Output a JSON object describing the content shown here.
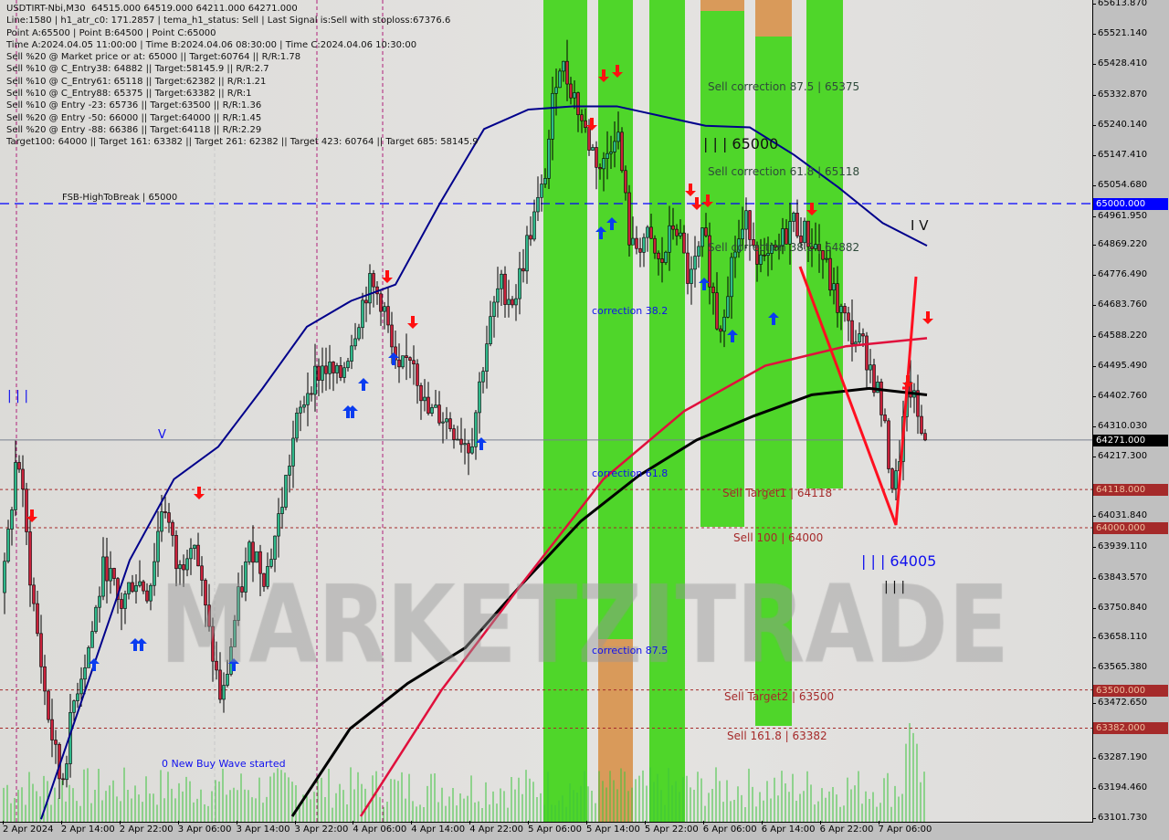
{
  "header": {
    "lines": [
      "USDTIRT-Nbi,M30  64515.000 64519.000 64211.000 64271.000",
      "Line:1580 | h1_atr_c0: 171.2857 | tema_h1_status: Sell | Last Signal is:Sell with stoploss:67376.6",
      "Point A:65500 | Point B:64500 | Point C:65000",
      "Time A:2024.04.05 11:00:00 | Time B:2024.04.06 08:30:00 | Time C:2024.04.06 10:30:00",
      "Sell %20 @ Market price or at: 65000 || Target:60764 || R/R:1.78",
      "Sell %10 @ C_Entry38: 64882 || Target:58145.9 || R/R:2.7",
      "Sell %10 @ C_Entry61: 65118 || Target:62382 || R/R:1.21",
      "Sell %10 @ C_Entry88: 65375 || Target:63382 || R/R:1",
      "Sell %10 @ Entry -23: 65736 || Target:63500 || R/R:1.36",
      "Sell %20 @ Entry -50: 66000 || Target:64000 || R/R:1.45",
      "Sell %20 @ Entry -88: 66386 || Target:64118 || R/R:2.29",
      "Target100: 64000 || Target 161: 63382 || Target 261: 62382 || Target 423: 60764 || Target 685: 58145.9"
    ]
  },
  "watermark": "MARKETZITRADE",
  "colors": {
    "background": "#dcdbd8",
    "bull": "#2fb88a",
    "bear": "#c8213a",
    "ma_blue": "#00008b",
    "ma_red": "#e0103c",
    "ma_black": "#000000",
    "band_green": "#4fd62a",
    "band_orange": "#d99a5a",
    "target_line": "#a52a2a",
    "fsb_line": "#0000ff"
  },
  "chart_data": {
    "type": "candlestick",
    "symbol": "USDTIRT-Nbi,M30",
    "ylim": [
      63101.73,
      65613.87
    ],
    "y_ticks": [
      "65613.870",
      "65521.140",
      "65428.410",
      "65332.870",
      "65240.140",
      "65147.410",
      "65054.680",
      "64961.950",
      "64869.220",
      "64776.490",
      "64683.760",
      "64588.220",
      "64495.490",
      "64402.760",
      "64310.030",
      "64217.300",
      "64031.840",
      "63939.110",
      "63843.570",
      "63750.840",
      "63658.110",
      "63565.380",
      "63472.650",
      "63287.190",
      "63194.460",
      "63101.730"
    ],
    "x_ticks": [
      "2 Apr 2024",
      "2 Apr 14:00",
      "2 Apr 22:00",
      "3 Apr 06:00",
      "3 Apr 14:00",
      "3 Apr 22:00",
      "4 Apr 06:00",
      "4 Apr 14:00",
      "4 Apr 22:00",
      "5 Apr 06:00",
      "5 Apr 14:00",
      "5 Apr 22:00",
      "6 Apr 06:00",
      "6 Apr 14:00",
      "6 Apr 22:00",
      "7 Apr 06:00"
    ],
    "close_path": [
      63800,
      64250,
      63800,
      63450,
      63200,
      63500,
      63650,
      63900,
      63750,
      63850,
      63800,
      64100,
      63850,
      64000,
      63700,
      63450,
      63750,
      63950,
      63850,
      64050,
      64300,
      64450,
      64500,
      64450,
      64600,
      64750,
      64700,
      64450,
      64550,
      64350,
      64350,
      64300,
      64250,
      64550,
      64750,
      64700,
      64900,
      65050,
      65450,
      65350,
      65200,
      65100,
      65250,
      64850,
      64900,
      64800,
      64950,
      64750,
      64900,
      64600,
      64850,
      64950,
      64800,
      64850,
      64950,
      64900,
      64850,
      64700,
      64600,
      64550,
      64400,
      64100,
      64450,
      64271
    ],
    "ma_blue": [
      63101,
      63500,
      63900,
      64150,
      64250,
      64430,
      64620,
      64700,
      64750,
      65000,
      65230,
      65290,
      65300,
      65300,
      65270,
      65240,
      65235,
      65150,
      65050,
      64940,
      64870
    ],
    "ma_black": [
      63110,
      63380,
      63520,
      63630,
      63830,
      64020,
      64160,
      64270,
      64345,
      64410,
      64430,
      64410
    ],
    "ma_red": [
      63110,
      63500,
      63830,
      64150,
      64360,
      64500,
      64560,
      64585
    ],
    "last_price": "64271.000",
    "levels": [
      {
        "price": 65000,
        "tag": "65000.000",
        "label": "FSB-HighToBreak  |  65000",
        "style": "fsb"
      },
      {
        "price": 64118,
        "tag": "64118.000",
        "label": "Sell Target1 | 64118",
        "style": "target"
      },
      {
        "price": 64000,
        "tag": "64000.000",
        "label": "Sell 100 | 64000",
        "style": "target"
      },
      {
        "price": 63500,
        "tag": "63500.000",
        "label": "Sell Target2 | 63500",
        "style": "target"
      },
      {
        "price": 63382,
        "tag": "63382.000",
        "label": "Sell 161.8 | 63382",
        "style": "target"
      }
    ],
    "annotations": {
      "sell_corr_875": "Sell correction 87.5 | 65375",
      "sell_corr_618": "Sell correction 61.8 | 65118",
      "sell_corr_382": "Sell correction 38.2 | 64882",
      "wave_65000": "| | | 65000",
      "wave_iv": "I V",
      "wave_64005": "| | | 64005",
      "wave_iii": "| | |",
      "wave_iii_left": "| | |",
      "wave_v": "V",
      "corr_382": "correction 38.2",
      "corr_618": "correction 61.8",
      "corr_875": "correction 87.5",
      "new_buy_wave": "0 New Buy Wave started"
    }
  }
}
